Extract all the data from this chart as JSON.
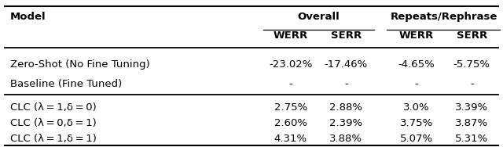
{
  "col_headers_row1": [
    "Model",
    "Overall",
    "",
    "Repeats/Rephrase",
    ""
  ],
  "col_headers_row2": [
    "",
    "WERR",
    "SERR",
    "WERR",
    "SERR"
  ],
  "rows": [
    [
      "Zero-Shot (No Fine Tuning)",
      "-23.02%",
      "-17.46%",
      "-4.65%",
      "-5.75%"
    ],
    [
      "Baseline (Fine Tuned)",
      "-",
      "-",
      "-",
      "-"
    ],
    [
      "CLC (λ = 1,δ = 0)",
      "2.75%",
      "2.88%",
      "3.0%",
      "3.39%"
    ],
    [
      "CLC (λ = 0,δ = 1)",
      "2.60%",
      "2.39%",
      "3.75%",
      "3.87%"
    ],
    [
      "CLC (λ = 1,δ = 1)",
      "4.31%",
      "3.88%",
      "5.07%",
      "5.31%"
    ]
  ],
  "figsize": [
    6.4,
    1.88
  ],
  "dpi": 100
}
